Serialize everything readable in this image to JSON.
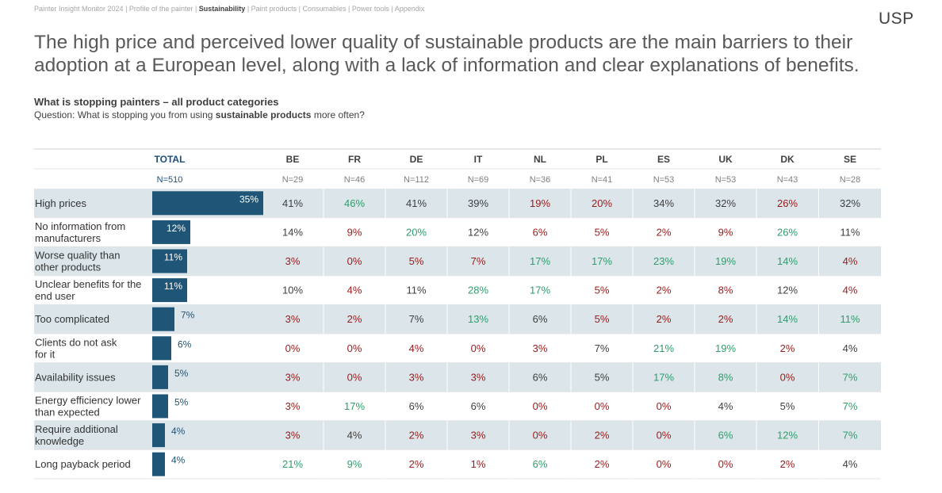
{
  "breadcrumb": {
    "prefix": "Painter Insight Monitor 2024 | Profile of the painter | ",
    "active": "Sustainability",
    "suffix": " | Paint products | Consumables | Power tools | Appendix"
  },
  "logo": "USP",
  "title": "The high price and perceived lower quality of sustainable products are the main barriers to their adoption at a European level, along with a lack of information and clear explanations of benefits.",
  "subtitle": "What is stopping painters – all product categories",
  "question": {
    "prefix": "Question: What is stopping you from using ",
    "bold": "sustainable products",
    "suffix": " more often?"
  },
  "colors": {
    "bar": "#1f5577",
    "header": "#1f4e79",
    "band": "#dbe5ea",
    "higher": "#2e9e6b",
    "lower": "#9b1b1b",
    "neutral": "#404040"
  },
  "chart_data": {
    "type": "table",
    "total_label": "TOTAL",
    "total_n": "N=510",
    "countries": [
      {
        "code": "BE",
        "n": "N=29"
      },
      {
        "code": "FR",
        "n": "N=46"
      },
      {
        "code": "DE",
        "n": "N=112"
      },
      {
        "code": "IT",
        "n": "N=69"
      },
      {
        "code": "NL",
        "n": "N=36"
      },
      {
        "code": "PL",
        "n": "N=41"
      },
      {
        "code": "ES",
        "n": "N=53"
      },
      {
        "code": "UK",
        "n": "N=53"
      },
      {
        "code": "DK",
        "n": "N=43"
      },
      {
        "code": "SE",
        "n": "N=28"
      }
    ],
    "rows": [
      {
        "label": [
          "High prices"
        ],
        "total": 35,
        "values": [
          41,
          46,
          41,
          39,
          19,
          20,
          34,
          32,
          26,
          32
        ],
        "sig": [
          "n",
          "h",
          "n",
          "n",
          "l",
          "l",
          "n",
          "n",
          "l",
          "n"
        ]
      },
      {
        "label": [
          "No information from",
          "manufacturers"
        ],
        "total": 12,
        "values": [
          14,
          9,
          20,
          12,
          6,
          5,
          2,
          9,
          26,
          11
        ],
        "sig": [
          "n",
          "l",
          "h",
          "n",
          "l",
          "l",
          "l",
          "l",
          "h",
          "n"
        ]
      },
      {
        "label": [
          "Worse quality than",
          "other products"
        ],
        "total": 11,
        "values": [
          3,
          0,
          5,
          7,
          17,
          17,
          23,
          19,
          14,
          4
        ],
        "sig": [
          "l",
          "l",
          "l",
          "l",
          "h",
          "h",
          "h",
          "h",
          "h",
          "l"
        ]
      },
      {
        "label": [
          "Unclear benefits for the",
          "end user"
        ],
        "total": 11,
        "values": [
          10,
          4,
          11,
          28,
          17,
          5,
          2,
          8,
          12,
          4
        ],
        "sig": [
          "n",
          "l",
          "n",
          "h",
          "h",
          "l",
          "l",
          "l",
          "n",
          "l"
        ]
      },
      {
        "label": [
          "Too complicated"
        ],
        "total": 7,
        "values": [
          3,
          2,
          7,
          13,
          6,
          5,
          2,
          2,
          14,
          11
        ],
        "sig": [
          "l",
          "l",
          "n",
          "h",
          "n",
          "l",
          "l",
          "l",
          "h",
          "h"
        ]
      },
      {
        "label": [
          "Clients do not ask",
          "for it"
        ],
        "total": 6,
        "values": [
          0,
          0,
          4,
          0,
          3,
          7,
          21,
          19,
          2,
          4
        ],
        "sig": [
          "l",
          "l",
          "l",
          "l",
          "l",
          "n",
          "h",
          "h",
          "l",
          "n"
        ]
      },
      {
        "label": [
          "Availability issues"
        ],
        "total": 5,
        "values": [
          3,
          0,
          3,
          3,
          6,
          5,
          17,
          8,
          0,
          7
        ],
        "sig": [
          "l",
          "l",
          "l",
          "l",
          "n",
          "n",
          "h",
          "h",
          "l",
          "h"
        ]
      },
      {
        "label": [
          "Energy efficiency lower",
          "than expected"
        ],
        "total": 5,
        "values": [
          3,
          17,
          6,
          6,
          0,
          0,
          0,
          4,
          5,
          7
        ],
        "sig": [
          "l",
          "h",
          "n",
          "n",
          "l",
          "l",
          "l",
          "n",
          "n",
          "h"
        ]
      },
      {
        "label": [
          "Require additional",
          "knowledge"
        ],
        "total": 4,
        "values": [
          3,
          4,
          2,
          3,
          0,
          2,
          0,
          6,
          12,
          7
        ],
        "sig": [
          "l",
          "n",
          "l",
          "l",
          "l",
          "l",
          "l",
          "h",
          "h",
          "h"
        ]
      },
      {
        "label": [
          "Long payback period"
        ],
        "total": 4,
        "values": [
          21,
          9,
          2,
          1,
          6,
          2,
          0,
          0,
          2,
          4
        ],
        "sig": [
          "h",
          "h",
          "l",
          "l",
          "h",
          "l",
          "l",
          "l",
          "l",
          "n"
        ]
      }
    ]
  }
}
